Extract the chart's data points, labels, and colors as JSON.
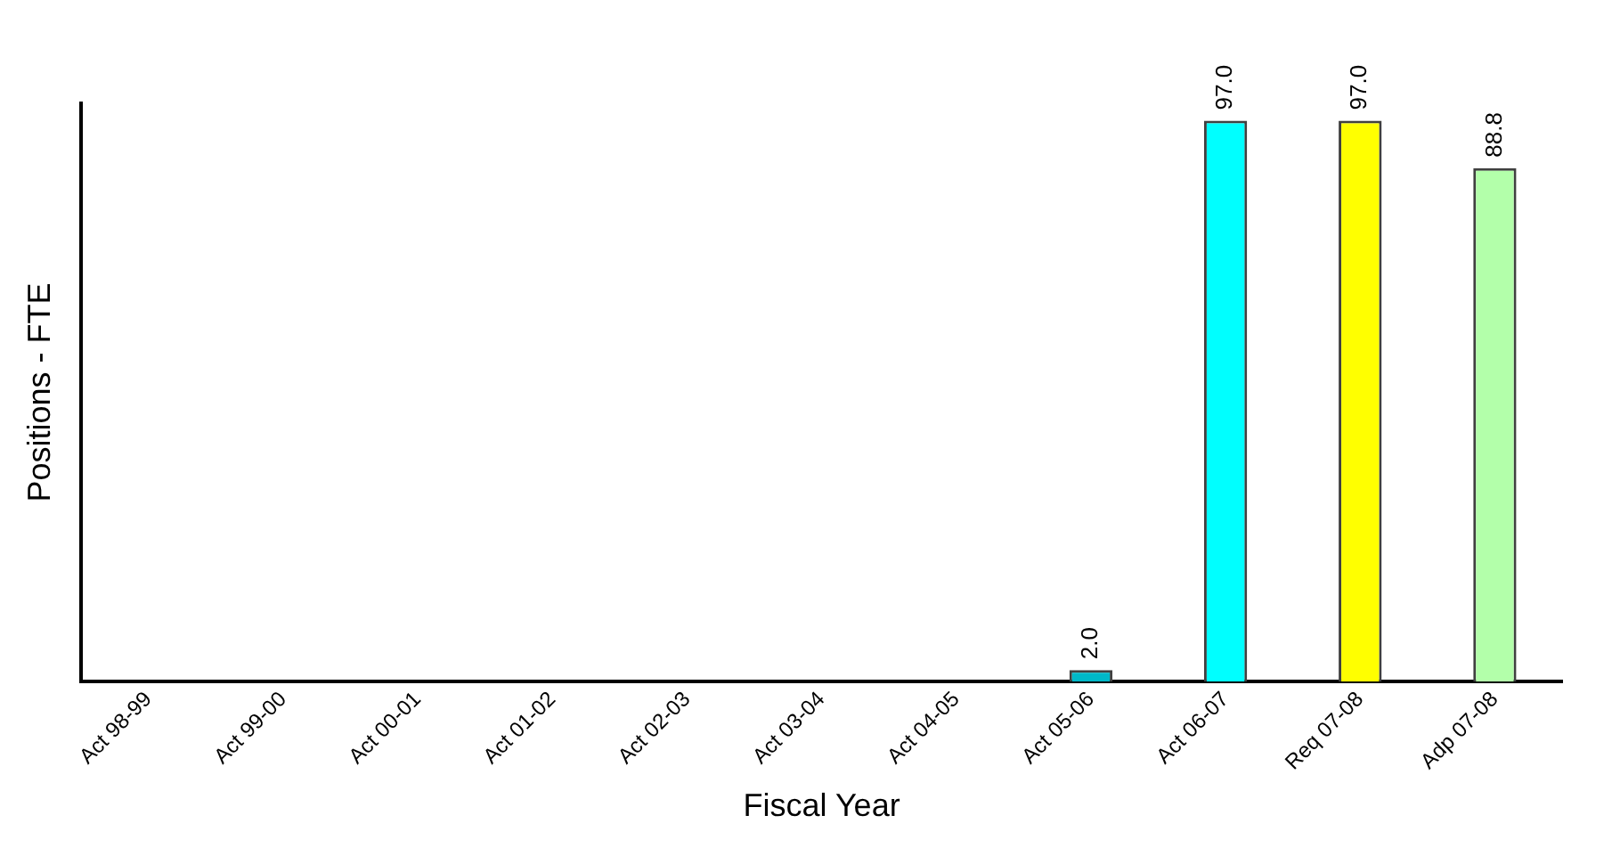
{
  "chart_data": {
    "type": "bar",
    "xlabel": "Fiscal Year",
    "ylabel": "Positions - FTE",
    "categories": [
      "Act 98-99",
      "Act 99-00",
      "Act 00-01",
      "Act 01-02",
      "Act 02-03",
      "Act 03-04",
      "Act 04-05",
      "Act 05-06",
      "Act 06-07",
      "Req 07-08",
      "Adp 07-08"
    ],
    "values": [
      null,
      null,
      null,
      null,
      null,
      null,
      null,
      2.0,
      97.0,
      97.0,
      88.8
    ],
    "value_labels": [
      null,
      null,
      null,
      null,
      null,
      null,
      null,
      "2.0",
      "97.0",
      "97.0",
      "88.8"
    ],
    "colors": [
      "#00b8c8",
      "#00b8c8",
      "#00b8c8",
      "#00b8c8",
      "#00b8c8",
      "#00b8c8",
      "#00b8c8",
      "#00b8c8",
      "#00ffff",
      "#ffff00",
      "#b3ffaa"
    ],
    "grid": false,
    "legend": false
  }
}
